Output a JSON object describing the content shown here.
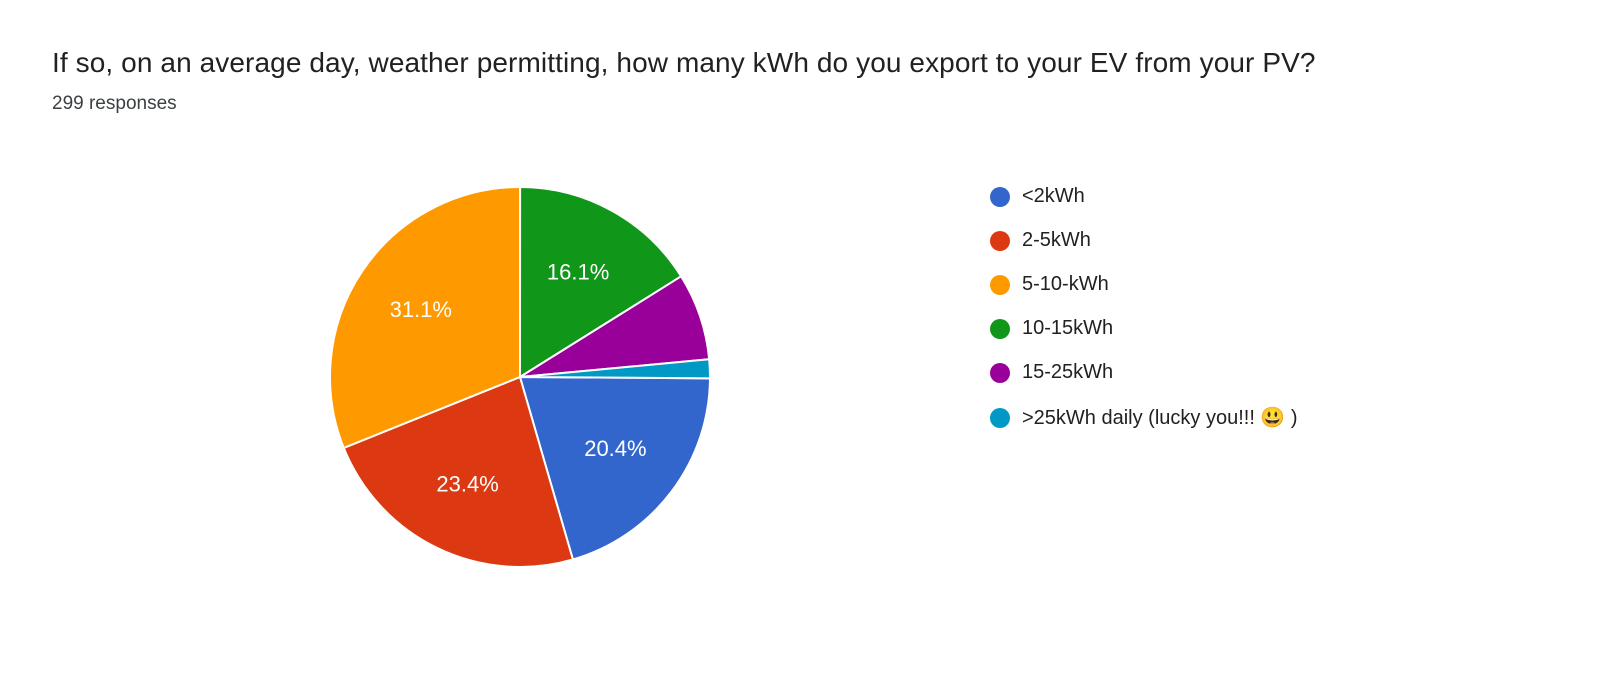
{
  "header": {
    "title": "If so, on an average day, weather permitting, how many kWh do you export to your EV from your PV?",
    "responses": "299 responses"
  },
  "chart_data": {
    "type": "pie",
    "title": "If so, on an average day, weather permitting, how many kWh do you export to your EV from your PV?",
    "responses_count": 299,
    "labels": [
      "<2kWh",
      "2-5kWh",
      "5-10-kWh",
      "10-15kWh",
      "15-25kWh",
      ">25kWh daily (lucky you!!! 😃 )"
    ],
    "values_percent": [
      20.4,
      23.4,
      31.1,
      16.1,
      7.4,
      1.6
    ],
    "slice_labels": [
      "20.4%",
      "23.4%",
      "31.1%",
      "16.1%",
      "",
      ""
    ],
    "colors": [
      "#3366cc",
      "#dc3912",
      "#ff9900",
      "#109618",
      "#990099",
      "#0099c6"
    ],
    "rotation_deg": 90.4,
    "legend_position": "right",
    "background": "#ffffff"
  }
}
